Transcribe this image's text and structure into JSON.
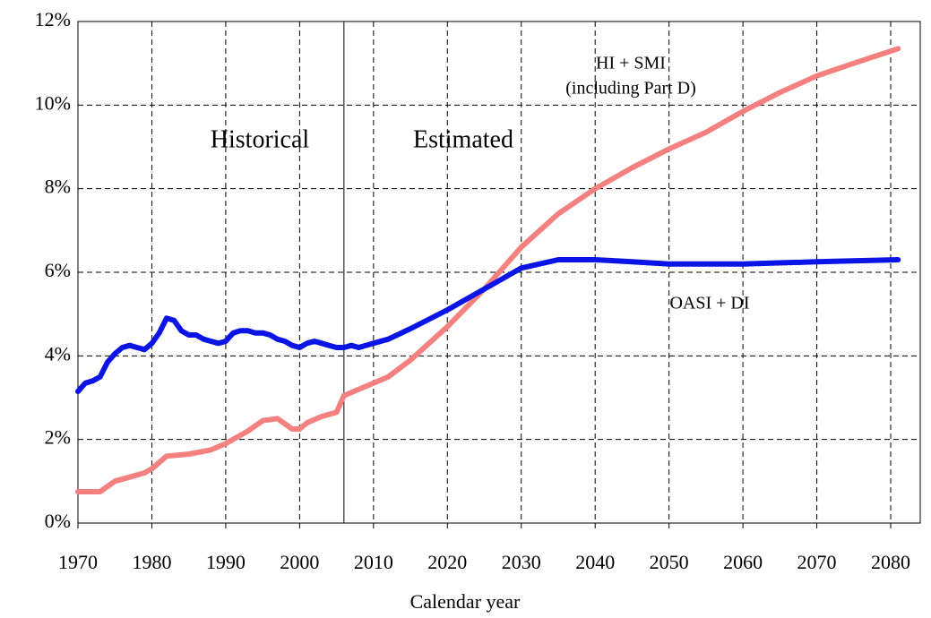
{
  "chart_data": {
    "type": "line",
    "x_label": "Calendar year",
    "xlim": [
      1970,
      2084
    ],
    "xticks": [
      1970,
      1980,
      1990,
      2000,
      2010,
      2020,
      2030,
      2040,
      2050,
      2060,
      2070,
      2080
    ],
    "ylim": [
      0,
      12
    ],
    "yticks": [
      {
        "value": 0,
        "label": "0%"
      },
      {
        "value": 2,
        "label": "2%"
      },
      {
        "value": 4,
        "label": "4%"
      },
      {
        "value": 6,
        "label": "6%"
      },
      {
        "value": 8,
        "label": "8%"
      },
      {
        "value": 10,
        "label": "10%"
      },
      {
        "value": 12,
        "label": "12%"
      }
    ],
    "grid": true,
    "divider_x": 2006,
    "region_labels": [
      "Historical",
      "Estimated"
    ],
    "annotation": "(including Part D)",
    "series": [
      {
        "name": "OASI + DI",
        "color": "#0a14e6",
        "x": [
          1970,
          1971,
          1972,
          1973,
          1974,
          1975,
          1976,
          1977,
          1978,
          1979,
          1980,
          1981,
          1982,
          1983,
          1984,
          1985,
          1986,
          1987,
          1988,
          1989,
          1990,
          1991,
          1992,
          1993,
          1994,
          1995,
          1996,
          1997,
          1998,
          1999,
          2000,
          2001,
          2002,
          2003,
          2004,
          2005,
          2006,
          2007,
          2008,
          2010,
          2012,
          2015,
          2020,
          2025,
          2030,
          2035,
          2040,
          2045,
          2050,
          2055,
          2060,
          2070,
          2081
        ],
        "values": [
          3.15,
          3.35,
          3.4,
          3.5,
          3.85,
          4.05,
          4.2,
          4.25,
          4.2,
          4.15,
          4.3,
          4.55,
          4.9,
          4.85,
          4.6,
          4.5,
          4.5,
          4.4,
          4.35,
          4.3,
          4.35,
          4.55,
          4.6,
          4.6,
          4.55,
          4.55,
          4.5,
          4.4,
          4.35,
          4.25,
          4.2,
          4.3,
          4.35,
          4.3,
          4.25,
          4.2,
          4.2,
          4.25,
          4.2,
          4.3,
          4.4,
          4.65,
          5.1,
          5.6,
          6.1,
          6.3,
          6.3,
          6.25,
          6.2,
          6.2,
          6.2,
          6.25,
          6.3
        ]
      },
      {
        "name": "HI + SMI",
        "color": "#f48080",
        "x": [
          1970,
          1973,
          1975,
          1977,
          1979,
          1980,
          1982,
          1985,
          1988,
          1990,
          1993,
          1995,
          1997,
          1999,
          2000,
          2001,
          2003,
          2005,
          2006,
          2008,
          2010,
          2012,
          2015,
          2020,
          2025,
          2030,
          2035,
          2040,
          2045,
          2050,
          2055,
          2060,
          2065,
          2070,
          2075,
          2081
        ],
        "values": [
          0.75,
          0.75,
          1.0,
          1.1,
          1.2,
          1.3,
          1.6,
          1.65,
          1.75,
          1.9,
          2.2,
          2.45,
          2.5,
          2.25,
          2.25,
          2.4,
          2.55,
          2.65,
          3.05,
          3.2,
          3.35,
          3.5,
          3.9,
          4.7,
          5.6,
          6.6,
          7.4,
          8.0,
          8.5,
          8.95,
          9.35,
          9.85,
          10.3,
          10.7,
          11.0,
          11.35
        ]
      }
    ]
  }
}
